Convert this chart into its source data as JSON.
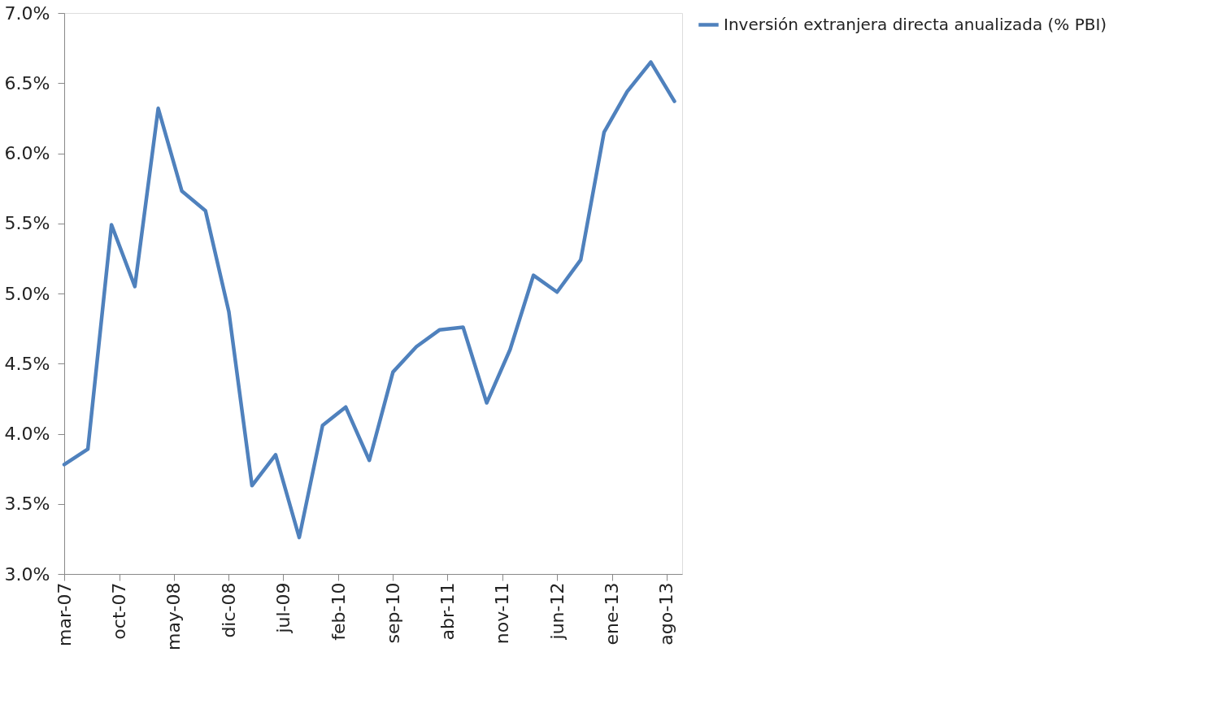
{
  "chart_data": {
    "type": "line",
    "x": [
      "2007-03",
      "2007-06",
      "2007-09",
      "2007-12",
      "2008-03",
      "2008-06",
      "2008-09",
      "2008-12",
      "2009-03",
      "2009-06",
      "2009-09",
      "2009-12",
      "2010-03",
      "2010-06",
      "2010-09",
      "2010-12",
      "2011-03",
      "2011-06",
      "2011-09",
      "2011-12",
      "2012-03",
      "2012-06",
      "2012-09",
      "2012-12",
      "2013-03",
      "2013-06",
      "2013-09"
    ],
    "series": [
      {
        "name": "Inversión extranjera directa anualizada (% PBI)",
        "color": "#4f81bd",
        "values": [
          3.78,
          3.89,
          5.49,
          5.05,
          6.32,
          5.73,
          5.59,
          4.87,
          3.63,
          3.85,
          3.26,
          4.06,
          4.19,
          3.81,
          4.44,
          4.62,
          4.74,
          4.76,
          4.22,
          4.6,
          5.13,
          5.01,
          5.24,
          6.15,
          6.44,
          6.65,
          6.37
        ]
      }
    ],
    "xlim": [
      "2007-03",
      "2013-10"
    ],
    "xticks": [
      {
        "value": "2007-03",
        "label": "mar-07"
      },
      {
        "value": "2007-10",
        "label": "oct-07"
      },
      {
        "value": "2008-05",
        "label": "may-08"
      },
      {
        "value": "2008-12",
        "label": "dic-08"
      },
      {
        "value": "2009-07",
        "label": "jul-09"
      },
      {
        "value": "2010-02",
        "label": "feb-10"
      },
      {
        "value": "2010-09",
        "label": "sep-10"
      },
      {
        "value": "2011-04",
        "label": "abr-11"
      },
      {
        "value": "2011-11",
        "label": "nov-11"
      },
      {
        "value": "2012-06",
        "label": "jun-12"
      },
      {
        "value": "2013-01",
        "label": "ene-13"
      },
      {
        "value": "2013-08",
        "label": "ago-13"
      }
    ],
    "ylim": [
      3,
      7
    ],
    "yticks": [
      {
        "value": 3,
        "label": "3.0%"
      },
      {
        "value": 3.5,
        "label": "3.5%"
      },
      {
        "value": 4,
        "label": "4.0%"
      },
      {
        "value": 4.5,
        "label": "4.5%"
      },
      {
        "value": 5,
        "label": "5.0%"
      },
      {
        "value": 5.5,
        "label": "5.5%"
      },
      {
        "value": 6,
        "label": "6.0%"
      },
      {
        "value": 6.5,
        "label": "6.5%"
      },
      {
        "value": 7,
        "label": "7.0%"
      }
    ],
    "grid": false,
    "legend": "right",
    "marker": "none",
    "line_style": "solid"
  }
}
